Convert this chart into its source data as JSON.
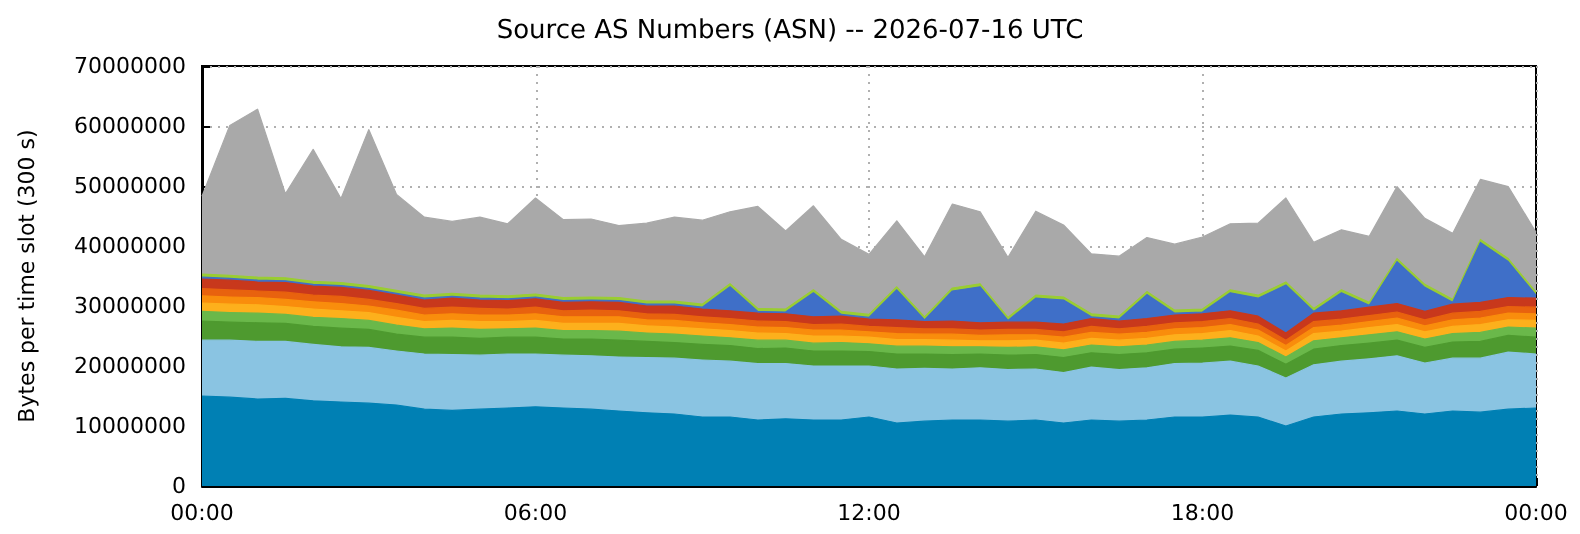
{
  "chart_data": {
    "type": "area",
    "title": "Source AS Numbers (ASN) -- 2026-07-16 UTC",
    "ylabel": "Bytes per time slot (300 s)",
    "stacked": true,
    "grid": true,
    "xlim": [
      0,
      24
    ],
    "xticks": [
      {
        "value": 0,
        "label": "00:00"
      },
      {
        "value": 6,
        "label": "06:00"
      },
      {
        "value": 12,
        "label": "12:00"
      },
      {
        "value": 18,
        "label": "18:00"
      },
      {
        "value": 24,
        "label": "00:00"
      }
    ],
    "ylim": [
      0,
      70000000
    ],
    "yticks": [
      0,
      10000000,
      20000000,
      30000000,
      40000000,
      50000000,
      60000000,
      70000000
    ],
    "x": [
      0,
      0.5,
      1,
      1.5,
      2,
      2.5,
      3,
      3.5,
      4,
      4.5,
      5,
      5.5,
      6,
      6.5,
      7,
      7.5,
      8,
      8.5,
      9,
      9.5,
      10,
      10.5,
      11,
      11.5,
      12,
      12.5,
      13,
      13.5,
      14,
      14.5,
      15,
      15.5,
      16,
      16.5,
      17,
      17.5,
      18,
      18.5,
      19,
      19.5,
      20,
      20.5,
      21,
      21.5,
      22,
      22.5,
      23,
      23.5,
      24
    ],
    "series": [
      {
        "color": "#0080b4",
        "values": [
          15000000.0,
          14800000.0,
          14500000.0,
          14600000.0,
          14200000.0,
          14000000.0,
          13800000.0,
          13500000.0,
          12800000.0,
          12600000.0,
          12800000.0,
          13000000.0,
          13200000.0,
          13000000.0,
          12800000.0,
          12500000.0,
          12200000.0,
          12000000.0,
          11500000.0,
          11500000.0,
          11000000.0,
          11200000.0,
          11000000.0,
          11000000.0,
          11500000.0,
          10500000.0,
          10800000.0,
          11000000.0,
          11000000.0,
          10800000.0,
          11000000.0,
          10500000.0,
          11000000.0,
          10800000.0,
          11000000.0,
          11500000.0,
          11500000.0,
          11800000.0,
          11500000.0,
          10000000.0,
          11500000.0,
          12000000.0,
          12200000.0,
          12500000.0,
          12000000.0,
          12500000.0,
          12300000.0,
          12800000.0,
          13000000.0
        ]
      },
      {
        "color": "#8ac4e2",
        "values": [
          9300000.0,
          9500000.0,
          9600000.0,
          9500000.0,
          9400000.0,
          9200000.0,
          9300000.0,
          9000000.0,
          9200000.0,
          9300000.0,
          9000000.0,
          9000000.0,
          8800000.0,
          8800000.0,
          8900000.0,
          9000000.0,
          9200000.0,
          9300000.0,
          9500000.0,
          9300000.0,
          9400000.0,
          9200000.0,
          9000000.0,
          9000000.0,
          8500000.0,
          9000000.0,
          8800000.0,
          8500000.0,
          8700000.0,
          8600000.0,
          8500000.0,
          8400000.0,
          8800000.0,
          8600000.0,
          8700000.0,
          8900000.0,
          9000000.0,
          9000000.0,
          8500000.0,
          8000000.0,
          8700000.0,
          8800000.0,
          9000000.0,
          9200000.0,
          8500000.0,
          8800000.0,
          9000000.0,
          9500000.0,
          9000000.0
        ]
      },
      {
        "color": "#4e9a2f",
        "values": [
          3200000.0,
          3000000.0,
          3100000.0,
          3000000.0,
          3000000.0,
          3100000.0,
          3000000.0,
          2800000.0,
          2800000.0,
          2900000.0,
          2800000.0,
          2800000.0,
          2800000.0,
          2700000.0,
          2800000.0,
          2800000.0,
          2700000.0,
          2600000.0,
          2600000.0,
          2600000.0,
          2500000.0,
          2600000.0,
          2500000.0,
          2500000.0,
          2400000.0,
          2500000.0,
          2400000.0,
          2400000.0,
          2300000.0,
          2400000.0,
          2400000.0,
          2500000.0,
          2400000.0,
          2500000.0,
          2500000.0,
          2400000.0,
          2500000.0,
          2500000.0,
          2600000.0,
          2300000.0,
          2600000.0,
          2600000.0,
          2600000.0,
          2600000.0,
          2600000.0,
          2700000.0,
          2800000.0,
          2800000.0,
          2800000.0
        ]
      },
      {
        "color": "#6ab84a",
        "values": [
          1600000.0,
          1600000.0,
          1600000.0,
          1500000.0,
          1500000.0,
          1600000.0,
          1500000.0,
          1500000.0,
          1400000.0,
          1500000.0,
          1500000.0,
          1400000.0,
          1500000.0,
          1400000.0,
          1400000.0,
          1500000.0,
          1400000.0,
          1400000.0,
          1400000.0,
          1300000.0,
          1400000.0,
          1300000.0,
          1300000.0,
          1400000.0,
          1300000.0,
          1300000.0,
          1300000.0,
          1300000.0,
          1200000.0,
          1300000.0,
          1300000.0,
          1300000.0,
          1300000.0,
          1300000.0,
          1300000.0,
          1300000.0,
          1300000.0,
          1400000.0,
          1300000.0,
          1200000.0,
          1400000.0,
          1300000.0,
          1400000.0,
          1400000.0,
          1400000.0,
          1400000.0,
          1500000.0,
          1400000.0,
          1500000.0
        ]
      },
      {
        "color": "#fdb01c",
        "values": [
          1400000.0,
          1400000.0,
          1400000.0,
          1300000.0,
          1400000.0,
          1300000.0,
          1300000.0,
          1300000.0,
          1200000.0,
          1300000.0,
          1300000.0,
          1200000.0,
          1300000.0,
          1200000.0,
          1200000.0,
          1300000.0,
          1200000.0,
          1200000.0,
          1200000.0,
          1200000.0,
          1200000.0,
          1100000.0,
          1200000.0,
          1100000.0,
          1100000.0,
          1100000.0,
          1100000.0,
          1100000.0,
          1000000.0,
          1100000.0,
          1100000.0,
          1100000.0,
          1100000.0,
          1100000.0,
          1100000.0,
          1100000.0,
          1100000.0,
          1200000.0,
          1100000.0,
          1000000.0,
          1200000.0,
          1100000.0,
          1200000.0,
          1200000.0,
          1200000.0,
          1200000.0,
          1300000.0,
          1200000.0,
          1300000.0
        ]
      },
      {
        "color": "#f98d0c",
        "values": [
          1200000.0,
          1200000.0,
          1200000.0,
          1200000.0,
          1200000.0,
          1200000.0,
          1100000.0,
          1200000.0,
          1100000.0,
          1100000.0,
          1100000.0,
          1100000.0,
          1100000.0,
          1100000.0,
          1100000.0,
          1100000.0,
          1000000.0,
          1100000.0,
          1000000.0,
          1000000.0,
          1000000.0,
          1000000.0,
          1000000.0,
          1000000.0,
          900000.0,
          1000000.0,
          900000.0,
          1000000.0,
          900000.0,
          1000000.0,
          900000.0,
          1000000.0,
          1000000.0,
          1000000.0,
          1000000.0,
          1000000.0,
          1000000.0,
          1000000.0,
          1000000.0,
          900000.0,
          1000000.0,
          1000000.0,
          1000000.0,
          1100000.0,
          1000000.0,
          1100000.0,
          1100000.0,
          1100000.0,
          1100000.0
        ]
      },
      {
        "color": "#e8620e",
        "values": [
          1200000.0,
          1200000.0,
          1100000.0,
          1200000.0,
          1100000.0,
          1200000.0,
          1100000.0,
          1100000.0,
          1100000.0,
          1100000.0,
          1100000.0,
          1000000.0,
          1100000.0,
          1000000.0,
          1100000.0,
          1000000.0,
          1000000.0,
          1000000.0,
          1000000.0,
          1000000.0,
          1000000.0,
          1000000.0,
          900000.0,
          1000000.0,
          900000.0,
          1000000.0,
          900000.0,
          900000.0,
          900000.0,
          900000.0,
          900000.0,
          900000.0,
          1000000.0,
          900000.0,
          1000000.0,
          1000000.0,
          1000000.0,
          1000000.0,
          1000000.0,
          900000.0,
          1000000.0,
          1000000.0,
          1000000.0,
          1000000.0,
          1000000.0,
          1100000.0,
          1100000.0,
          1100000.0,
          1100000.0
        ]
      },
      {
        "color": "#c8381c",
        "values": [
          1600000.0,
          1600000.0,
          1500000.0,
          1600000.0,
          1500000.0,
          1500000.0,
          1500000.0,
          1400000.0,
          1400000.0,
          1500000.0,
          1400000.0,
          1400000.0,
          1400000.0,
          1400000.0,
          1400000.0,
          1400000.0,
          1300000.0,
          1400000.0,
          1300000.0,
          1300000.0,
          1300000.0,
          1300000.0,
          1300000.0,
          1300000.0,
          1200000.0,
          1300000.0,
          1200000.0,
          1300000.0,
          1200000.0,
          1200000.0,
          1200000.0,
          1300000.0,
          1300000.0,
          1300000.0,
          1300000.0,
          1300000.0,
          1300000.0,
          1300000.0,
          1300000.0,
          1200000.0,
          1400000.0,
          1400000.0,
          1400000.0,
          1400000.0,
          1400000.0,
          1500000.0,
          1500000.0,
          1500000.0,
          1500000.0
        ]
      },
      {
        "color": "#3f6fc8",
        "values": [
          300000.0,
          300000.0,
          300000.0,
          300000.0,
          300000.0,
          300000.0,
          300000.0,
          300000.0,
          300000.0,
          300000.0,
          300000.0,
          300000.0,
          300000.0,
          300000.0,
          300000.0,
          300000.0,
          300000.0,
          300000.0,
          300000.0,
          4000000.0,
          300000.0,
          300000.0,
          4000000.0,
          300000.0,
          300000.0,
          5000000.0,
          300000.0,
          5000000.0,
          6000000.0,
          300000.0,
          4000000.0,
          4000000.0,
          300000.0,
          300000.0,
          4000000.0,
          300000.0,
          300000.0,
          3000000.0,
          3000000.0,
          8000000.0,
          300000.0,
          3000000.0,
          300000.0,
          7000000.0,
          4000000.0,
          300000.0,
          10000000.0,
          6000000.0,
          500000.0
        ]
      },
      {
        "color": "#9acd32",
        "values": [
          500000.0,
          500000.0,
          500000.0,
          500000.0,
          500000.0,
          500000.0,
          500000.0,
          500000.0,
          500000.0,
          500000.0,
          500000.0,
          500000.0,
          500000.0,
          500000.0,
          500000.0,
          500000.0,
          500000.0,
          500000.0,
          500000.0,
          500000.0,
          500000.0,
          500000.0,
          500000.0,
          500000.0,
          500000.0,
          500000.0,
          500000.0,
          500000.0,
          500000.0,
          500000.0,
          500000.0,
          500000.0,
          500000.0,
          500000.0,
          500000.0,
          500000.0,
          500000.0,
          500000.0,
          500000.0,
          500000.0,
          500000.0,
          500000.0,
          500000.0,
          500000.0,
          500000.0,
          500000.0,
          500000.0,
          500000.0,
          500000.0
        ]
      },
      {
        "color": "#a9a9a9",
        "values": [
          13000000.0,
          25000000.0,
          28000000.0,
          14000000.0,
          22000000.0,
          14000000.0,
          26000000.0,
          16000000.0,
          13000000.0,
          12000000.0,
          13000000.0,
          12000000.0,
          16000000.0,
          13000000.0,
          13000000.0,
          12000000.0,
          13000000.0,
          14000000.0,
          14000000.0,
          12000000.0,
          17000000.0,
          13000000.0,
          14000000.0,
          12000000.0,
          10000000.0,
          11000000.0,
          10000000.0,
          14000000.0,
          12000000.0,
          10000000.0,
          14000000.0,
          12000000.0,
          10000000.0,
          10000000.0,
          9000000.0,
          11000000.0,
          12000000.0,
          11000000.0,
          12000000.0,
          14000000.0,
          11000000.0,
          10000000.0,
          11000000.0,
          12000000.0,
          11000000.0,
          11000000.0,
          10000000.0,
          12000000.0,
          10000000.0
        ]
      }
    ]
  }
}
